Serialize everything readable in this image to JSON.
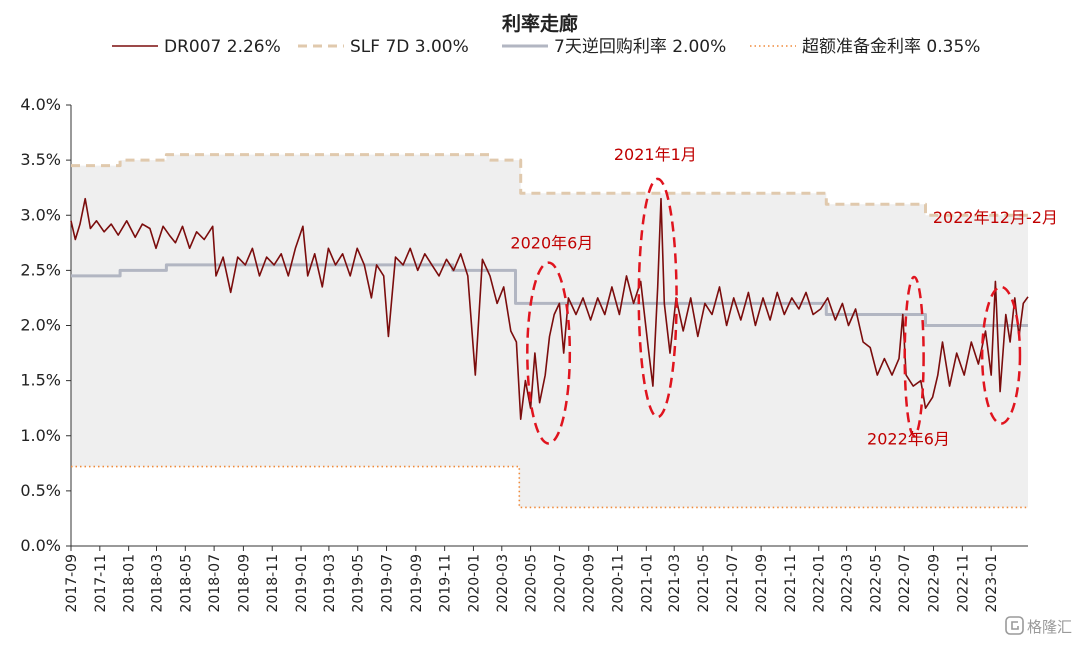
{
  "chart_data": {
    "type": "line",
    "title": "利率走廊",
    "xlabel": "",
    "ylabel": "",
    "ylim": [
      0,
      4.0
    ],
    "yticks": [
      "0.0%",
      "0.5%",
      "1.0%",
      "1.5%",
      "2.0%",
      "2.5%",
      "3.0%",
      "3.5%",
      "4.0%"
    ],
    "xticks": [
      "2017-09",
      "2017-11",
      "2018-01",
      "2018-03",
      "2018-05",
      "2018-07",
      "2018-09",
      "2018-11",
      "2019-01",
      "2019-03",
      "2019-05",
      "2019-07",
      "2019-09",
      "2019-11",
      "2020-01",
      "2020-03",
      "2020-05",
      "2020-07",
      "2020-09",
      "2020-11",
      "2021-01",
      "2021-03",
      "2021-05",
      "2021-07",
      "2021-09",
      "2021-11",
      "2022-01",
      "2022-03",
      "2022-05",
      "2022-07",
      "2022-09",
      "2022-11",
      "2023-01"
    ],
    "xlim": [
      "2017-09-01",
      "2023-03-20"
    ],
    "grid": false,
    "legend_position": "top",
    "corridor_fill": "#efefef",
    "series": [
      {
        "name": "DR007",
        "legend_label": "DR007",
        "legend_value": "2.26%",
        "style": "solid",
        "color": "#7b0d0d",
        "points": [
          [
            "2017-09-01",
            2.95
          ],
          [
            "2017-09-10",
            2.78
          ],
          [
            "2017-09-20",
            2.92
          ],
          [
            "2017-10-01",
            3.15
          ],
          [
            "2017-10-12",
            2.88
          ],
          [
            "2017-10-25",
            2.95
          ],
          [
            "2017-11-10",
            2.85
          ],
          [
            "2017-11-25",
            2.92
          ],
          [
            "2017-12-10",
            2.82
          ],
          [
            "2017-12-28",
            2.95
          ],
          [
            "2018-01-15",
            2.8
          ],
          [
            "2018-01-30",
            2.92
          ],
          [
            "2018-02-15",
            2.88
          ],
          [
            "2018-02-28",
            2.7
          ],
          [
            "2018-03-15",
            2.9
          ],
          [
            "2018-03-28",
            2.82
          ],
          [
            "2018-04-10",
            2.75
          ],
          [
            "2018-04-25",
            2.9
          ],
          [
            "2018-05-10",
            2.7
          ],
          [
            "2018-05-25",
            2.85
          ],
          [
            "2018-06-10",
            2.78
          ],
          [
            "2018-06-28",
            2.9
          ],
          [
            "2018-07-05",
            2.45
          ],
          [
            "2018-07-20",
            2.62
          ],
          [
            "2018-08-05",
            2.3
          ],
          [
            "2018-08-20",
            2.62
          ],
          [
            "2018-09-05",
            2.55
          ],
          [
            "2018-09-20",
            2.7
          ],
          [
            "2018-10-05",
            2.45
          ],
          [
            "2018-10-20",
            2.62
          ],
          [
            "2018-11-05",
            2.55
          ],
          [
            "2018-11-20",
            2.65
          ],
          [
            "2018-12-05",
            2.45
          ],
          [
            "2018-12-20",
            2.7
          ],
          [
            "2019-01-05",
            2.9
          ],
          [
            "2019-01-15",
            2.45
          ],
          [
            "2019-01-30",
            2.65
          ],
          [
            "2019-02-15",
            2.35
          ],
          [
            "2019-02-28",
            2.7
          ],
          [
            "2019-03-15",
            2.55
          ],
          [
            "2019-03-30",
            2.65
          ],
          [
            "2019-04-15",
            2.45
          ],
          [
            "2019-04-30",
            2.7
          ],
          [
            "2019-05-15",
            2.55
          ],
          [
            "2019-05-30",
            2.25
          ],
          [
            "2019-06-10",
            2.55
          ],
          [
            "2019-06-25",
            2.45
          ],
          [
            "2019-07-05",
            1.9
          ],
          [
            "2019-07-20",
            2.62
          ],
          [
            "2019-08-05",
            2.55
          ],
          [
            "2019-08-20",
            2.7
          ],
          [
            "2019-09-05",
            2.5
          ],
          [
            "2019-09-20",
            2.65
          ],
          [
            "2019-10-05",
            2.55
          ],
          [
            "2019-10-20",
            2.45
          ],
          [
            "2019-11-05",
            2.6
          ],
          [
            "2019-11-20",
            2.5
          ],
          [
            "2019-12-05",
            2.65
          ],
          [
            "2019-12-20",
            2.45
          ],
          [
            "2020-01-05",
            1.55
          ],
          [
            "2020-01-20",
            2.6
          ],
          [
            "2020-02-05",
            2.45
          ],
          [
            "2020-02-20",
            2.2
          ],
          [
            "2020-03-05",
            2.35
          ],
          [
            "2020-03-20",
            1.95
          ],
          [
            "2020-04-01",
            1.85
          ],
          [
            "2020-04-10",
            1.15
          ],
          [
            "2020-04-20",
            1.5
          ],
          [
            "2020-05-01",
            1.25
          ],
          [
            "2020-05-10",
            1.75
          ],
          [
            "2020-05-20",
            1.3
          ],
          [
            "2020-06-01",
            1.55
          ],
          [
            "2020-06-10",
            1.9
          ],
          [
            "2020-06-20",
            2.1
          ],
          [
            "2020-07-01",
            2.2
          ],
          [
            "2020-07-10",
            1.75
          ],
          [
            "2020-07-20",
            2.25
          ],
          [
            "2020-08-05",
            2.1
          ],
          [
            "2020-08-20",
            2.25
          ],
          [
            "2020-09-05",
            2.05
          ],
          [
            "2020-09-20",
            2.25
          ],
          [
            "2020-10-05",
            2.1
          ],
          [
            "2020-10-20",
            2.35
          ],
          [
            "2020-11-05",
            2.1
          ],
          [
            "2020-11-20",
            2.45
          ],
          [
            "2020-12-05",
            2.2
          ],
          [
            "2020-12-20",
            2.4
          ],
          [
            "2021-01-05",
            1.8
          ],
          [
            "2021-01-15",
            1.45
          ],
          [
            "2021-01-25",
            2.35
          ],
          [
            "2021-02-01",
            3.15
          ],
          [
            "2021-02-08",
            2.2
          ],
          [
            "2021-02-20",
            1.75
          ],
          [
            "2021-03-05",
            2.25
          ],
          [
            "2021-03-20",
            1.95
          ],
          [
            "2021-04-05",
            2.25
          ],
          [
            "2021-04-20",
            1.9
          ],
          [
            "2021-05-05",
            2.2
          ],
          [
            "2021-05-20",
            2.1
          ],
          [
            "2021-06-05",
            2.35
          ],
          [
            "2021-06-20",
            2.0
          ],
          [
            "2021-07-05",
            2.25
          ],
          [
            "2021-07-20",
            2.05
          ],
          [
            "2021-08-05",
            2.3
          ],
          [
            "2021-08-20",
            2.0
          ],
          [
            "2021-09-05",
            2.25
          ],
          [
            "2021-09-20",
            2.05
          ],
          [
            "2021-10-05",
            2.3
          ],
          [
            "2021-10-20",
            2.1
          ],
          [
            "2021-11-05",
            2.25
          ],
          [
            "2021-11-20",
            2.15
          ],
          [
            "2021-12-05",
            2.3
          ],
          [
            "2021-12-20",
            2.1
          ],
          [
            "2022-01-05",
            2.15
          ],
          [
            "2022-01-20",
            2.25
          ],
          [
            "2022-02-05",
            2.05
          ],
          [
            "2022-02-20",
            2.2
          ],
          [
            "2022-03-05",
            2.0
          ],
          [
            "2022-03-20",
            2.15
          ],
          [
            "2022-04-05",
            1.85
          ],
          [
            "2022-04-20",
            1.8
          ],
          [
            "2022-05-05",
            1.55
          ],
          [
            "2022-05-20",
            1.7
          ],
          [
            "2022-06-05",
            1.55
          ],
          [
            "2022-06-20",
            1.7
          ],
          [
            "2022-06-28",
            2.1
          ],
          [
            "2022-07-05",
            1.55
          ],
          [
            "2022-07-20",
            1.45
          ],
          [
            "2022-08-05",
            1.5
          ],
          [
            "2022-08-15",
            1.25
          ],
          [
            "2022-08-30",
            1.35
          ],
          [
            "2022-09-10",
            1.55
          ],
          [
            "2022-09-20",
            1.85
          ],
          [
            "2022-10-05",
            1.45
          ],
          [
            "2022-10-20",
            1.75
          ],
          [
            "2022-11-05",
            1.55
          ],
          [
            "2022-11-20",
            1.85
          ],
          [
            "2022-12-05",
            1.65
          ],
          [
            "2022-12-20",
            1.95
          ],
          [
            "2023-01-01",
            1.55
          ],
          [
            "2023-01-10",
            2.4
          ],
          [
            "2023-01-20",
            1.4
          ],
          [
            "2023-02-01",
            2.1
          ],
          [
            "2023-02-10",
            1.85
          ],
          [
            "2023-02-20",
            2.25
          ],
          [
            "2023-03-01",
            1.9
          ],
          [
            "2023-03-10",
            2.2
          ],
          [
            "2023-03-20",
            2.26
          ]
        ]
      },
      {
        "name": "SLF 7D",
        "legend_label": "SLF 7D",
        "legend_value": "3.00%",
        "style": "dashed",
        "color": "#e0c9ad",
        "points": [
          [
            "2017-09-01",
            3.45
          ],
          [
            "2017-12-14",
            3.45
          ],
          [
            "2017-12-14",
            3.5
          ],
          [
            "2018-03-22",
            3.5
          ],
          [
            "2018-03-22",
            3.55
          ],
          [
            "2020-02-03",
            3.55
          ],
          [
            "2020-02-03",
            3.5
          ],
          [
            "2020-04-10",
            3.5
          ],
          [
            "2020-04-10",
            3.2
          ],
          [
            "2022-01-17",
            3.2
          ],
          [
            "2022-01-17",
            3.1
          ],
          [
            "2022-08-15",
            3.1
          ],
          [
            "2022-08-15",
            3.0
          ],
          [
            "2023-03-20",
            3.0
          ]
        ]
      },
      {
        "name": "7天逆回购利率",
        "legend_label": "7天逆回购利率",
        "legend_value": "2.00%",
        "style": "solid",
        "color": "#b2b6c2",
        "points": [
          [
            "2017-09-01",
            2.45
          ],
          [
            "2017-12-14",
            2.45
          ],
          [
            "2017-12-14",
            2.5
          ],
          [
            "2018-03-22",
            2.5
          ],
          [
            "2018-03-22",
            2.55
          ],
          [
            "2019-11-18",
            2.55
          ],
          [
            "2019-11-18",
            2.5
          ],
          [
            "2020-03-30",
            2.5
          ],
          [
            "2020-03-30",
            2.2
          ],
          [
            "2022-01-17",
            2.2
          ],
          [
            "2022-01-17",
            2.1
          ],
          [
            "2022-08-15",
            2.1
          ],
          [
            "2022-08-15",
            2.0
          ],
          [
            "2023-03-20",
            2.0
          ]
        ]
      },
      {
        "name": "超额准备金利率",
        "legend_label": "超额准备金利率",
        "legend_value": "0.35%",
        "style": "dotted",
        "color": "#f08a3a",
        "points": [
          [
            "2017-09-01",
            0.72
          ],
          [
            "2020-04-07",
            0.72
          ],
          [
            "2020-04-07",
            0.35
          ],
          [
            "2023-03-20",
            0.35
          ]
        ]
      }
    ],
    "annotations": [
      {
        "text": "2020年6月",
        "x": "2020-06-15",
        "y": 2.7
      },
      {
        "text": "2021年1月",
        "x": "2021-01-20",
        "y": 3.5
      },
      {
        "text": "2022年12月-2月",
        "x": "2023-01-10",
        "y": 2.93
      },
      {
        "text": "2022年6月",
        "x": "2022-07-10",
        "y": 0.92
      }
    ],
    "highlights": [
      {
        "cx": "2020-06-08",
        "cy": 1.75,
        "rx_days": 45,
        "ry": 0.82
      },
      {
        "cx": "2021-01-25",
        "cy": 2.25,
        "rx_days": 40,
        "ry": 1.08
      },
      {
        "cx": "2022-07-22",
        "cy": 1.72,
        "rx_days": 20,
        "ry": 0.72
      },
      {
        "cx": "2023-01-22",
        "cy": 1.73,
        "rx_days": 40,
        "ry": 0.62
      }
    ],
    "watermark": "格隆汇"
  }
}
